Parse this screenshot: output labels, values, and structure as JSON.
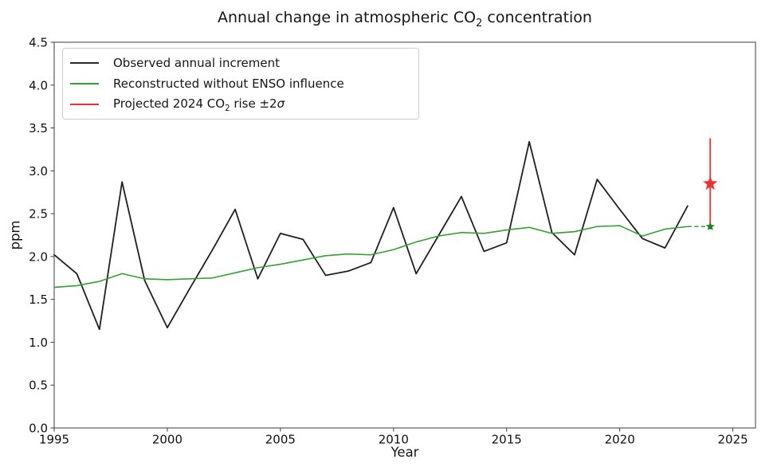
{
  "chart_data": {
    "type": "line",
    "title": {
      "pre": "Annual change in atmospheric CO",
      "sub": "2",
      "post": " concentration"
    },
    "xlabel": "Year",
    "ylabel": "ppm",
    "xlim": [
      1995,
      2026
    ],
    "ylim": [
      0,
      4.5
    ],
    "grid": false,
    "legend_position": "upper left",
    "xticks": [
      "1995",
      "2000",
      "2005",
      "2010",
      "2015",
      "2020",
      "2025"
    ],
    "yticks": [
      "0.0",
      "0.5",
      "1.0",
      "1.5",
      "2.0",
      "2.5",
      "3.0",
      "3.5",
      "4.0",
      "4.5"
    ],
    "years": [
      1995,
      1996,
      1997,
      1998,
      1999,
      2000,
      2001,
      2002,
      2003,
      2004,
      2005,
      2006,
      2007,
      2008,
      2009,
      2010,
      2011,
      2012,
      2013,
      2014,
      2015,
      2016,
      2017,
      2018,
      2019,
      2020,
      2021,
      2022,
      2023
    ],
    "series": [
      {
        "name": "Observed annual increment",
        "color": "#1f1f1f",
        "line_width": 1.8,
        "values": [
          2.02,
          1.8,
          1.15,
          2.87,
          1.72,
          1.17,
          1.63,
          2.08,
          2.55,
          1.74,
          2.27,
          2.2,
          1.78,
          1.83,
          1.93,
          2.57,
          1.8,
          2.25,
          2.7,
          2.06,
          2.16,
          3.34,
          2.28,
          2.02,
          2.9,
          2.55,
          2.21,
          2.1,
          2.59
        ]
      },
      {
        "name": "Reconstructed without ENSO influence",
        "color": "#33a033",
        "line_width": 1.6,
        "values": [
          1.64,
          1.66,
          1.71,
          1.8,
          1.74,
          1.73,
          1.74,
          1.75,
          1.81,
          1.87,
          1.91,
          1.96,
          2.01,
          2.03,
          2.02,
          2.08,
          2.17,
          2.24,
          2.28,
          2.27,
          2.31,
          2.34,
          2.27,
          2.29,
          2.35,
          2.36,
          2.24,
          2.32,
          2.35
        ]
      }
    ],
    "projection": {
      "year": 2024,
      "red_star_value": 2.85,
      "error_bar_low": 2.32,
      "error_bar_high": 3.38,
      "green_star_value": 2.35,
      "dashed_from_year": 2023,
      "dashed_from_value": 2.35,
      "red_color": "#ee3030",
      "green_star_color": "#1e7d1e"
    },
    "legend": {
      "items": [
        {
          "label": "Observed annual increment",
          "color": "#2b2b2b"
        },
        {
          "label": "Reconstructed without ENSO influence",
          "color": "#33a033"
        },
        {
          "label_pre": "Projected 2024 CO",
          "label_sub": "2",
          "label_mid": " rise ±2",
          "label_sigma": "σ",
          "color": "#ee3030"
        }
      ]
    },
    "frame_color": "#3c3c3c",
    "tick_label_color": "#111111",
    "tick_font_size": 15
  }
}
